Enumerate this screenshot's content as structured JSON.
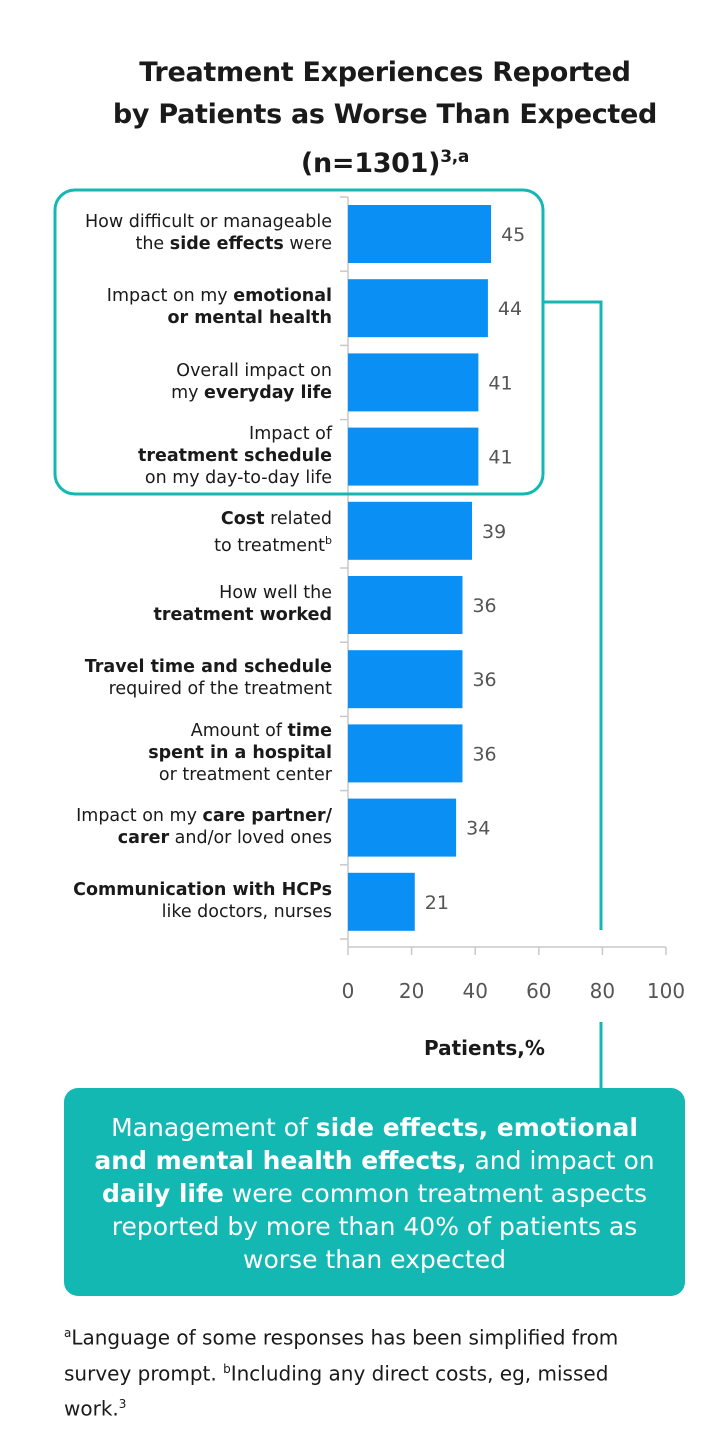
{
  "chart_data": {
    "type": "bar",
    "orientation": "horizontal",
    "title": "Treatment Experiences Reported by Patients as Worse Than Expected (n=1301)",
    "title_sup": "3,a",
    "categories": [
      "How difficult or manageable the side effects were",
      "Impact on my emotional or mental health",
      "Overall impact on my everyday life",
      "Impact of treatment schedule on my day-to-day life",
      "Cost related to treatment",
      "How well the treatment worked",
      "Travel time and schedule required of the treatment",
      "Amount of time spent in a hospital or treatment center",
      "Impact on my care partner/ carer and/or loved ones",
      "Communication with HCPs like doctors, nurses"
    ],
    "values": [
      45,
      44,
      41,
      41,
      39,
      36,
      36,
      36,
      34,
      21
    ],
    "xlabel": "Patients,%",
    "xlim": [
      0,
      100
    ],
    "xticks": [
      0,
      20,
      40,
      60,
      80,
      100
    ],
    "bar_color": "#0a8ff5",
    "highlight_color": "#14b8b3",
    "highlighted_categories": 4
  },
  "labels": [
    {
      "pre": "How difficult or manageable",
      "br": true,
      "pre2": "the ",
      "bold": "side effects",
      "post": " were"
    },
    {
      "pre": "Impact on my ",
      "bold": "emotional",
      "br_after_bold": true,
      "bold2": "or mental health",
      "post": ""
    },
    {
      "pre": "Overall impact on",
      "br": true,
      "pre2": "my ",
      "bold": "everyday life",
      "post": ""
    },
    {
      "pre": "Impact of",
      "br": true,
      "pre2": "",
      "bold": "treatment schedule",
      "post": "",
      "line3": "on my day-to-day life"
    },
    {
      "pre": "",
      "bold": "Cost",
      "post": " related",
      "line2": "to treatment",
      "line2_sup": "b"
    },
    {
      "pre": "How well the",
      "br": true,
      "pre2": "",
      "bold": "treatment worked",
      "post": ""
    },
    {
      "pre": "",
      "bold": "Travel time and schedule",
      "post": "",
      "line2": "required of the treatment"
    },
    {
      "pre": "Amount of ",
      "bold": "time",
      "br_after_bold": true,
      "bold2": "spent in a hospital",
      "post": "",
      "line3": "or treatment center"
    },
    {
      "pre": "Impact on my ",
      "bold": "care partner/",
      "br_after_bold": true,
      "bold2": "carer",
      "post": " and/or loved ones"
    },
    {
      "pre": "",
      "bold": "Communication with HCPs",
      "post": "",
      "line2": "like doctors, nurses"
    }
  ],
  "callout": {
    "p1": "Management of ",
    "b1": "side effects, emotional and mental health effects,",
    "p2": " and impact on ",
    "b2": "daily life",
    "p3": " were common treatment aspects reported by more than 40% of patients as worse than expected"
  },
  "footnote": {
    "sup_a": "a",
    "text_a": "Language of some responses has been simplified from survey prompt. ",
    "sup_b": "b",
    "text_b": "Including any direct costs, eg, missed work.",
    "sup_ref": "3"
  },
  "title_lines": [
    "Treatment Experiences Reported",
    "by Patients as Worse Than Expected",
    "(n=1301)"
  ]
}
